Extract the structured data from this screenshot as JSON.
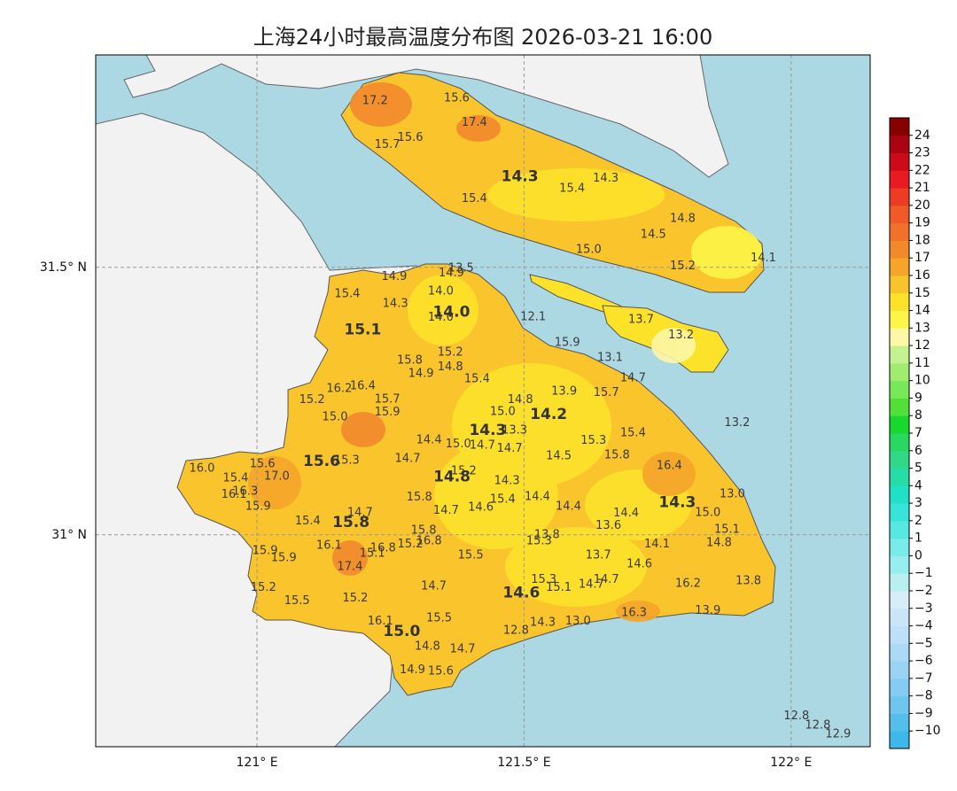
{
  "chart_data": {
    "type": "map",
    "title": "上海24小时最高温度分布图 2026-03-21 16:00",
    "xlim": [
      120.698,
      122.148
    ],
    "ylim": [
      30.604,
      31.897
    ],
    "xticks": [
      {
        "value": 121,
        "label": "121° E"
      },
      {
        "value": 121.5,
        "label": "121.5° E"
      },
      {
        "value": 122,
        "label": "122° E"
      }
    ],
    "yticks": [
      {
        "value": 31,
        "label": "31° N"
      },
      {
        "value": 31.5,
        "label": "31.5° N"
      }
    ],
    "grid": true,
    "stations": {
      "x": [
        121.221,
        121.374,
        121.407,
        121.244,
        121.287,
        121.59,
        121.653,
        121.407,
        121.797,
        121.742,
        121.621,
        121.797,
        121.948,
        121.382,
        121.257,
        121.364,
        121.169,
        121.344,
        121.259,
        121.517,
        121.719,
        121.794,
        121.581,
        121.362,
        121.286,
        121.661,
        121.362,
        121.307,
        121.704,
        121.412,
        121.154,
        121.198,
        121.575,
        121.654,
        121.103,
        121.244,
        121.493,
        121.244,
        121.46,
        121.146,
        121.899,
        121.482,
        121.704,
        121.322,
        121.63,
        121.377,
        121.422,
        121.473,
        121.674,
        121.282,
        120.897,
        121.01,
        121.168,
        121.565,
        121.772,
        121.037,
        121.387,
        120.96,
        121.468,
        120.978,
        120.957,
        121.304,
        121.525,
        121.46,
        121.89,
        121.002,
        121.419,
        121.354,
        121.583,
        121.193,
        121.844,
        121.691,
        121.095,
        121.658,
        121.88,
        121.312,
        121.322,
        121.287,
        121.543,
        121.528,
        121.865,
        121.135,
        121.236,
        121.216,
        121.749,
        121.015,
        121.05,
        121.4,
        121.639,
        121.716,
        121.174,
        121.537,
        121.565,
        121.626,
        121.654,
        121.807,
        121.92,
        121.012,
        121.331,
        121.184,
        121.075,
        121.706,
        121.844,
        121.341,
        121.231,
        121.535,
        121.601,
        121.485,
        121.319,
        121.385,
        121.291,
        121.344,
        122.01,
        122.05,
        122.088,
        121.344
      ],
      "y": [
        31.811,
        31.816,
        31.77,
        31.729,
        31.742,
        31.647,
        31.666,
        31.628,
        31.591,
        31.561,
        31.533,
        31.502,
        31.517,
        31.498,
        31.482,
        31.489,
        31.45,
        31.455,
        31.432,
        31.407,
        31.402,
        31.373,
        31.359,
        31.341,
        31.326,
        31.331,
        31.313,
        31.301,
        31.293,
        31.291,
        31.273,
        31.278,
        31.268,
        31.265,
        31.252,
        31.253,
        31.252,
        31.229,
        31.23,
        31.22,
        31.209,
        31.195,
        31.19,
        31.177,
        31.176,
        31.169,
        31.167,
        31.161,
        31.149,
        31.142,
        31.124,
        31.132,
        31.139,
        31.147,
        31.129,
        31.109,
        31.119,
        31.106,
        31.101,
        31.081,
        31.075,
        31.07,
        31.071,
        31.066,
        31.076,
        31.053,
        31.051,
        31.045,
        31.053,
        31.041,
        31.041,
        31.04,
        31.025,
        31.017,
        31.01,
        31.008,
        30.988,
        30.982,
        31.0,
        30.988,
        30.985,
        30.98,
        30.975,
        30.965,
        30.982,
        30.97,
        30.957,
        30.962,
        30.962,
        30.945,
        30.94,
        30.916,
        30.901,
        30.907,
        30.916,
        30.909,
        30.914,
        30.901,
        30.904,
        30.881,
        30.876,
        30.854,
        30.858,
        30.844,
        30.838,
        30.836,
        30.838,
        30.821,
        30.791,
        30.786,
        30.747,
        30.745,
        30.661,
        30.644,
        30.627,
        31.406
      ],
      "values": [
        17.2,
        15.6,
        17.4,
        15.7,
        15.6,
        15.4,
        14.3,
        15.4,
        14.8,
        14.5,
        15.0,
        15.2,
        14.1,
        13.5,
        14.9,
        14.9,
        15.4,
        14.0,
        14.3,
        12.1,
        13.7,
        13.2,
        15.9,
        15.2,
        15.8,
        13.1,
        14.8,
        14.9,
        14.7,
        15.4,
        16.2,
        16.4,
        13.9,
        15.7,
        15.2,
        15.7,
        14.8,
        15.9,
        15.0,
        15.0,
        13.2,
        13.3,
        15.4,
        14.4,
        15.3,
        15.0,
        14.7,
        14.7,
        15.8,
        14.7,
        16.0,
        15.6,
        15.3,
        14.5,
        16.4,
        17.0,
        15.2,
        15.4,
        14.3,
        16.3,
        16.1,
        15.8,
        14.4,
        15.4,
        13.0,
        15.9,
        14.6,
        14.7,
        14.4,
        14.7,
        15.0,
        14.4,
        15.4,
        13.6,
        15.1,
        15.8,
        16.8,
        15.2,
        13.8,
        15.3,
        14.8,
        16.1,
        16.8,
        15.1,
        14.1,
        15.9,
        15.9,
        15.5,
        13.7,
        14.6,
        17.4,
        15.3,
        15.1,
        14.7,
        14.7,
        16.2,
        13.8,
        15.2,
        14.7,
        15.2,
        15.5,
        16.3,
        13.9,
        15.5,
        16.1,
        14.3,
        13.0,
        12.8,
        14.8,
        14.7,
        14.9,
        15.6,
        12.8,
        12.8,
        12.9,
        14.0
      ],
      "value_labels": [
        "17.2",
        "15.6",
        "17.4",
        "15.7",
        "15.6",
        "15.4",
        "14.3",
        "15.4",
        "14.8",
        "14.5",
        "15.0",
        "15.2",
        "14.1",
        "13.5",
        "14.9",
        "14.9",
        "15.4",
        "14.0",
        "14.3",
        "12.1",
        "13.7",
        "13.2",
        "15.9",
        "15.2",
        "15.8",
        "13.1",
        "14.8",
        "14.9",
        "14.7",
        "15.4",
        "16.2",
        "16.4",
        "13.9",
        "15.7",
        "15.2",
        "15.7",
        "14.8",
        "15.9",
        "15.0",
        "15.0",
        "13.2",
        "13.3",
        "15.4",
        "14.4",
        "15.3",
        "15.0",
        "14.7",
        "14.7",
        "15.8",
        "14.7",
        "16.0",
        "15.6",
        "15.3",
        "14.5",
        "16.4",
        "17.0",
        "15.2",
        "15.4",
        "14.3",
        "16.3",
        "16.1",
        "15.8",
        "14.4",
        "15.4",
        "13.0",
        "15.9",
        "14.6",
        "14.7",
        "14.4",
        "14.7",
        "15.0",
        "14.4",
        "15.4",
        "13.6",
        "15.1",
        "15.8",
        "16.8",
        "15.2",
        "13.8",
        "15.3",
        "14.8",
        "16.1",
        "16.8",
        "15.1",
        "14.1",
        "15.9",
        "15.9",
        "15.5",
        "13.7",
        "14.6",
        "17.4",
        "15.3",
        "15.1",
        "14.7",
        "14.7",
        "16.2",
        "13.8",
        "15.2",
        "14.7",
        "15.2",
        "15.5",
        "16.3",
        "13.9",
        "15.5",
        "16.1",
        "14.3",
        "13.0",
        "12.8",
        "14.8",
        "14.7",
        "14.9",
        "15.6",
        "12.8",
        "12.8",
        "12.9",
        "14.0"
      ]
    },
    "districts": {
      "x": [
        121.492,
        121.364,
        121.198,
        121.546,
        121.432,
        121.121,
        121.365,
        121.787,
        121.176,
        121.495,
        121.271
      ],
      "y": [
        31.669,
        31.416,
        31.383,
        31.225,
        31.195,
        31.137,
        31.108,
        31.06,
        31.023,
        30.891,
        30.819
      ],
      "values": [
        14.3,
        14.0,
        15.1,
        14.2,
        14.3,
        15.6,
        14.8,
        14.3,
        15.8,
        14.6,
        15.0
      ],
      "value_labels": [
        "14.3",
        "14.0",
        "15.1",
        "14.2",
        "14.3",
        "15.6",
        "14.8",
        "14.3",
        "15.8",
        "14.6",
        "15.0"
      ]
    },
    "colorbar": {
      "lim": [
        -11,
        25
      ],
      "colors": [
        "#3db8e8",
        "#55bfeb",
        "#6cc6ee",
        "#84ccf1",
        "#9ad3f4",
        "#acd9f6",
        "#bddff8",
        "#cbe5f8",
        "#d8eef6",
        "#b8f0f0",
        "#98eeee",
        "#78ebea",
        "#58e8e4",
        "#38e4da",
        "#20e0c8",
        "#28dca8",
        "#30d888",
        "#28d860",
        "#18d830",
        "#50e038",
        "#78e858",
        "#a0ec70",
        "#c4f290",
        "#fdf7a6",
        "#fdf547",
        "#fde22a",
        "#f8c42c",
        "#f5a52a",
        "#f28a2c",
        "#f1702a",
        "#f05a28",
        "#ee3c24",
        "#ea1a22",
        "#cc0a1a",
        "#aa0412",
        "#880000"
      ],
      "ticks": [
        {
          "value": -10,
          "label": "−10"
        },
        {
          "value": -9,
          "label": "−9"
        },
        {
          "value": -8,
          "label": "−8"
        },
        {
          "value": -7,
          "label": "−7"
        },
        {
          "value": -6,
          "label": "−6"
        },
        {
          "value": -5,
          "label": "−5"
        },
        {
          "value": -4,
          "label": "−4"
        },
        {
          "value": -3,
          "label": "−3"
        },
        {
          "value": -2,
          "label": "−2"
        },
        {
          "value": -1,
          "label": "−1"
        },
        0,
        1,
        2,
        3,
        4,
        5,
        6,
        7,
        8,
        9,
        10,
        11,
        12,
        13,
        14,
        15,
        16,
        17,
        18,
        19,
        20,
        21,
        22,
        23,
        24
      ]
    }
  }
}
